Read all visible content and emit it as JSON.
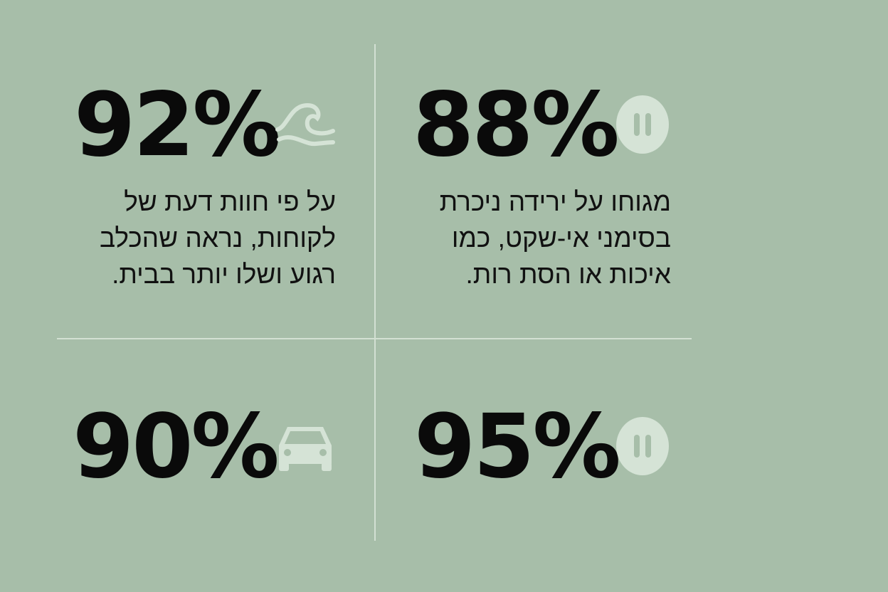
{
  "colors": {
    "background": "#a7bea9",
    "icon": "#d5e3d6",
    "divider": "#d3e0d3",
    "text": "#0a0a0a"
  },
  "stats": [
    {
      "value": "92%",
      "icon": "wave-icon",
      "text": "על פי חוות דעת של לקוחות, נראה שהכלב רגוע ושלו יותר בבית."
    },
    {
      "value": "88%",
      "icon": "pause-icon",
      "text": "מגוחו על ירידה ניכרת בסימני אי-שקט, כמו איכות או הסת רות."
    },
    {
      "value": "90%",
      "icon": "car-icon"
    },
    {
      "value": "95%",
      "icon": "pause-icon"
    }
  ]
}
